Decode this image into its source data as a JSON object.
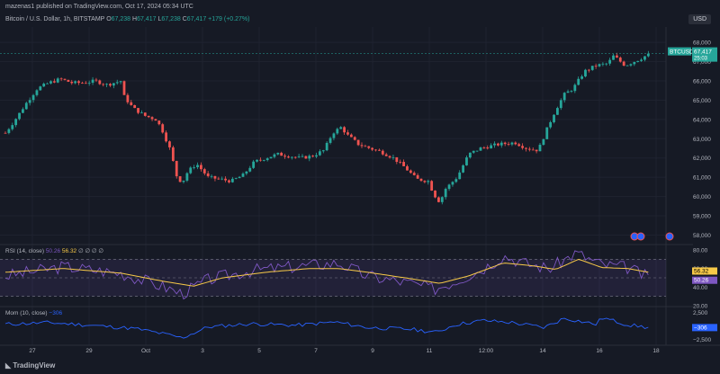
{
  "header": {
    "published": "mazenas1 published on TradingView.com, Oct 17, 2024 05:34 UTC",
    "symbol_line": "Bitcoin / U.S. Dollar, 1h, BITSTAMP",
    "o_label": "O",
    "o_value": "67,238",
    "h_label": "H",
    "h_value": "67,417",
    "l_label": "L",
    "l_value": "67,238",
    "c_label": "C",
    "c_value": "67,417",
    "change": "+179 (+0.27%)"
  },
  "currency": "USD",
  "rsi_label": {
    "name": "RSI (14, close)",
    "v1": "50.26",
    "v2": "56.32",
    "rest": "∅ ∅ ∅ ∅"
  },
  "mom_label": {
    "name": "Mom (10, close)",
    "value": "−306"
  },
  "branding": "TradingView",
  "colors": {
    "up": "#26a69a",
    "down": "#ef5350",
    "rsi": "#7e57c2",
    "rsi_ma": "#f7c948",
    "mom": "#2962ff",
    "background": "#161a25"
  },
  "chart_data": [
    {
      "type": "candlestick",
      "title": "Bitcoin / U.S. Dollar, 1h, BITSTAMP",
      "ylim": [
        57600,
        68800
      ],
      "y_ticks": [
        58000,
        59000,
        60000,
        61000,
        62000,
        63000,
        64000,
        65000,
        66000,
        67000,
        68000
      ],
      "y_tick_labels": [
        "58,000",
        "59,000",
        "60,000",
        "61,000",
        "62,000",
        "63,000",
        "64,000",
        "65,000",
        "66,000",
        "67,000",
        "68,000"
      ],
      "x_ticks": [
        "27",
        "29",
        "Oct",
        "3",
        "5",
        "7",
        "9",
        "11",
        "12:00",
        "14",
        "16",
        "18"
      ],
      "last_price_label": "BTCUSD",
      "last_price": "67,417",
      "countdown": "25:03",
      "path": [
        [
          0,
          63300
        ],
        [
          0.3,
          63900
        ],
        [
          0.7,
          64800
        ],
        [
          1.1,
          65600
        ],
        [
          1.5,
          65900
        ],
        [
          1.9,
          66100
        ],
        [
          2.3,
          65900
        ],
        [
          2.7,
          65900
        ],
        [
          3.1,
          66000
        ],
        [
          3.5,
          65800
        ],
        [
          4.0,
          66000
        ],
        [
          4.1,
          65200
        ],
        [
          4.4,
          64600
        ],
        [
          4.8,
          64200
        ],
        [
          5.2,
          64000
        ],
        [
          5.4,
          63500
        ],
        [
          5.7,
          62400
        ],
        [
          5.9,
          61100
        ],
        [
          6.1,
          60700
        ],
        [
          6.3,
          61300
        ],
        [
          6.6,
          61700
        ],
        [
          7.0,
          61000
        ],
        [
          7.4,
          60900
        ],
        [
          7.8,
          60800
        ],
        [
          8.2,
          61100
        ],
        [
          8.6,
          61800
        ],
        [
          9.0,
          62000
        ],
        [
          9.4,
          62200
        ],
        [
          9.8,
          62100
        ],
        [
          10.2,
          62000
        ],
        [
          10.6,
          62100
        ],
        [
          11.0,
          62400
        ],
        [
          11.3,
          63300
        ],
        [
          11.6,
          63600
        ],
        [
          11.8,
          63200
        ],
        [
          12.2,
          62700
        ],
        [
          12.6,
          62500
        ],
        [
          13.0,
          62300
        ],
        [
          13.4,
          62000
        ],
        [
          13.8,
          61500
        ],
        [
          14.2,
          60900
        ],
        [
          14.6,
          60800
        ],
        [
          14.8,
          60100
        ],
        [
          15.0,
          59700
        ],
        [
          15.2,
          60400
        ],
        [
          15.6,
          61000
        ],
        [
          16.0,
          62200
        ],
        [
          16.4,
          62500
        ],
        [
          17.0,
          62700
        ],
        [
          17.6,
          62800
        ],
        [
          18.0,
          62500
        ],
        [
          18.4,
          62400
        ],
        [
          18.7,
          63500
        ],
        [
          19.0,
          64500
        ],
        [
          19.3,
          65300
        ],
        [
          19.6,
          65600
        ],
        [
          20.0,
          66500
        ],
        [
          20.4,
          66800
        ],
        [
          20.8,
          66900
        ],
        [
          21.0,
          67300
        ],
        [
          21.4,
          66800
        ],
        [
          21.7,
          67000
        ],
        [
          22.0,
          67200
        ],
        [
          22.2,
          67400
        ]
      ],
      "last_index_hint": "last candle close 67,417"
    },
    {
      "type": "line",
      "name": "RSI (14, close)",
      "ylim": [
        20,
        80
      ],
      "y_ticks": [
        20,
        40,
        60,
        80
      ],
      "y_tick_labels": [
        "20.00",
        "40.00",
        "60.00",
        "80.00"
      ],
      "bands": [
        30,
        50,
        70
      ],
      "rsi_value": 50.26,
      "ma_value": 56.32,
      "path": [
        [
          0,
          52
        ],
        [
          2,
          62
        ],
        [
          4,
          55
        ],
        [
          5.5,
          40
        ],
        [
          6.1,
          33
        ],
        [
          7,
          48
        ],
        [
          8.5,
          58
        ],
        [
          10,
          62
        ],
        [
          11.5,
          66
        ],
        [
          12.5,
          52
        ],
        [
          14,
          44
        ],
        [
          14.8,
          38
        ],
        [
          15.5,
          46
        ],
        [
          16.5,
          60
        ],
        [
          17.2,
          74
        ],
        [
          18,
          65
        ],
        [
          18.8,
          60
        ],
        [
          19.7,
          77
        ],
        [
          20.6,
          64
        ],
        [
          21.5,
          61
        ],
        [
          22.2,
          50
        ]
      ],
      "ma_path": [
        [
          0,
          56
        ],
        [
          2,
          60
        ],
        [
          4,
          55
        ],
        [
          5.5,
          46
        ],
        [
          6.5,
          41
        ],
        [
          7.5,
          50
        ],
        [
          9,
          56
        ],
        [
          10.5,
          60
        ],
        [
          11.5,
          60
        ],
        [
          12.5,
          56
        ],
        [
          14,
          49
        ],
        [
          15,
          44
        ],
        [
          16,
          52
        ],
        [
          17.2,
          66
        ],
        [
          18.2,
          63
        ],
        [
          19,
          59
        ],
        [
          19.8,
          70
        ],
        [
          20.6,
          61
        ],
        [
          21.5,
          60
        ],
        [
          22.2,
          56
        ]
      ]
    },
    {
      "type": "line",
      "name": "Mom (10, close)",
      "ylim": [
        -3200,
        3200
      ],
      "y_ticks": [
        -2500,
        0,
        2500
      ],
      "y_tick_labels": [
        "−2,500",
        "0",
        "2,500"
      ],
      "last_value": -306,
      "path": [
        [
          0,
          300
        ],
        [
          1.5,
          600
        ],
        [
          3,
          100
        ],
        [
          4.5,
          -500
        ],
        [
          5.6,
          -1600
        ],
        [
          6.1,
          -2200
        ],
        [
          7,
          -200
        ],
        [
          8.5,
          400
        ],
        [
          10,
          100
        ],
        [
          11.4,
          700
        ],
        [
          12.5,
          -300
        ],
        [
          14,
          -600
        ],
        [
          14.9,
          -1200
        ],
        [
          15.5,
          200
        ],
        [
          16.5,
          1000
        ],
        [
          17.5,
          600
        ],
        [
          18.6,
          -300
        ],
        [
          19.3,
          1400
        ],
        [
          20.4,
          300
        ],
        [
          20.6,
          1500
        ],
        [
          21.5,
          200
        ],
        [
          22.2,
          -306
        ]
      ]
    }
  ]
}
